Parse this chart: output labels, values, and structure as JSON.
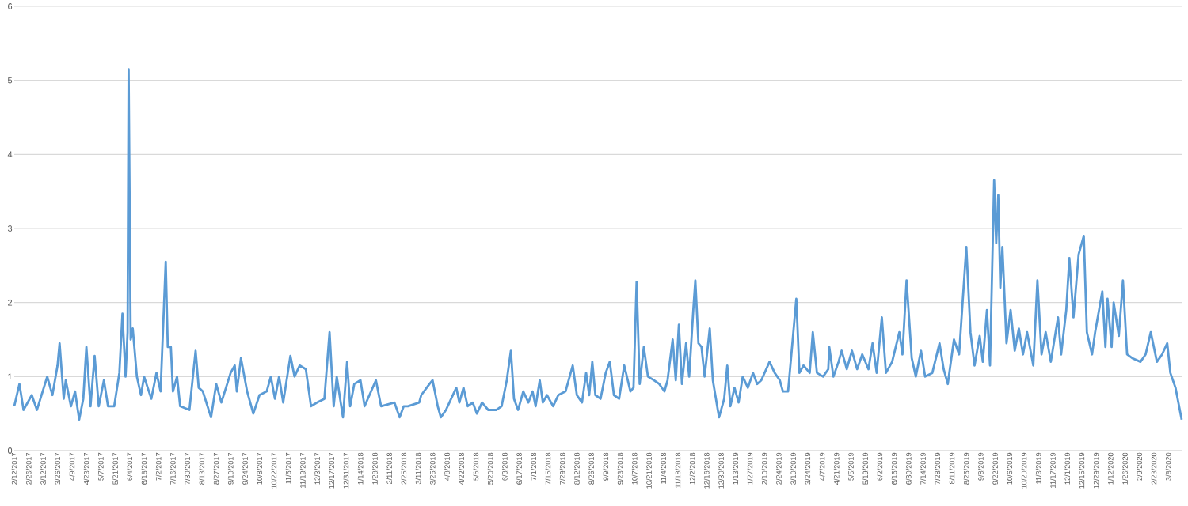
{
  "chart_data": {
    "type": "line",
    "color": "#5b9bd5",
    "grid": "y",
    "line_style": "solid",
    "xlim": [
      "2017-02-12",
      "2020-03-21"
    ],
    "ylim": [
      0,
      6
    ],
    "yticks": [
      0,
      1,
      2,
      3,
      4,
      5,
      6
    ],
    "xticks": [
      {
        "value": "2017-02-12",
        "label": "2/12/2017"
      },
      {
        "value": "2017-02-26",
        "label": "2/26/2017"
      },
      {
        "value": "2017-03-12",
        "label": "3/12/2017"
      },
      {
        "value": "2017-03-26",
        "label": "3/26/2017"
      },
      {
        "value": "2017-04-09",
        "label": "4/9/2017"
      },
      {
        "value": "2017-04-23",
        "label": "4/23/2017"
      },
      {
        "value": "2017-05-07",
        "label": "5/7/2017"
      },
      {
        "value": "2017-05-21",
        "label": "5/21/2017"
      },
      {
        "value": "2017-06-04",
        "label": "6/4/2017"
      },
      {
        "value": "2017-06-18",
        "label": "6/18/2017"
      },
      {
        "value": "2017-07-02",
        "label": "7/2/2017"
      },
      {
        "value": "2017-07-16",
        "label": "7/16/2017"
      },
      {
        "value": "2017-07-30",
        "label": "7/30/2017"
      },
      {
        "value": "2017-08-13",
        "label": "8/13/2017"
      },
      {
        "value": "2017-08-27",
        "label": "8/27/2017"
      },
      {
        "value": "2017-09-10",
        "label": "9/10/2017"
      },
      {
        "value": "2017-09-24",
        "label": "9/24/2017"
      },
      {
        "value": "2017-10-08",
        "label": "10/8/2017"
      },
      {
        "value": "2017-10-22",
        "label": "10/22/2017"
      },
      {
        "value": "2017-11-05",
        "label": "11/5/2017"
      },
      {
        "value": "2017-11-19",
        "label": "11/19/2017"
      },
      {
        "value": "2017-12-03",
        "label": "12/3/2017"
      },
      {
        "value": "2017-12-17",
        "label": "12/17/2017"
      },
      {
        "value": "2017-12-31",
        "label": "12/31/2017"
      },
      {
        "value": "2018-01-14",
        "label": "1/14/2018"
      },
      {
        "value": "2018-01-28",
        "label": "1/28/2018"
      },
      {
        "value": "2018-02-11",
        "label": "2/11/2018"
      },
      {
        "value": "2018-02-25",
        "label": "2/25/2018"
      },
      {
        "value": "2018-03-11",
        "label": "3/11/2018"
      },
      {
        "value": "2018-03-25",
        "label": "3/25/2018"
      },
      {
        "value": "2018-04-08",
        "label": "4/8/2018"
      },
      {
        "value": "2018-04-22",
        "label": "4/22/2018"
      },
      {
        "value": "2018-05-06",
        "label": "5/6/2018"
      },
      {
        "value": "2018-05-20",
        "label": "5/20/2018"
      },
      {
        "value": "2018-06-03",
        "label": "6/3/2018"
      },
      {
        "value": "2018-06-17",
        "label": "6/17/2018"
      },
      {
        "value": "2018-07-01",
        "label": "7/1/2018"
      },
      {
        "value": "2018-07-15",
        "label": "7/15/2018"
      },
      {
        "value": "2018-07-29",
        "label": "7/29/2018"
      },
      {
        "value": "2018-08-12",
        "label": "8/12/2018"
      },
      {
        "value": "2018-08-26",
        "label": "8/26/2018"
      },
      {
        "value": "2018-09-09",
        "label": "9/9/2018"
      },
      {
        "value": "2018-09-23",
        "label": "9/23/2018"
      },
      {
        "value": "2018-10-07",
        "label": "10/7/2018"
      },
      {
        "value": "2018-10-21",
        "label": "10/21/2018"
      },
      {
        "value": "2018-11-04",
        "label": "11/4/2018"
      },
      {
        "value": "2018-11-18",
        "label": "11/18/2018"
      },
      {
        "value": "2018-12-02",
        "label": "12/2/2018"
      },
      {
        "value": "2018-12-16",
        "label": "12/16/2018"
      },
      {
        "value": "2018-12-30",
        "label": "12/30/2018"
      },
      {
        "value": "2019-01-13",
        "label": "1/13/2019"
      },
      {
        "value": "2019-01-27",
        "label": "1/27/2019"
      },
      {
        "value": "2019-02-10",
        "label": "2/10/2019"
      },
      {
        "value": "2019-02-24",
        "label": "2/24/2019"
      },
      {
        "value": "2019-03-10",
        "label": "3/10/2019"
      },
      {
        "value": "2019-03-24",
        "label": "3/24/2019"
      },
      {
        "value": "2019-04-07",
        "label": "4/7/2019"
      },
      {
        "value": "2019-04-21",
        "label": "4/21/2019"
      },
      {
        "value": "2019-05-05",
        "label": "5/5/2019"
      },
      {
        "value": "2019-05-19",
        "label": "5/19/2019"
      },
      {
        "value": "2019-06-02",
        "label": "6/2/2019"
      },
      {
        "value": "2019-06-16",
        "label": "6/16/2019"
      },
      {
        "value": "2019-06-30",
        "label": "6/30/2019"
      },
      {
        "value": "2019-07-14",
        "label": "7/14/2019"
      },
      {
        "value": "2019-07-28",
        "label": "7/28/2019"
      },
      {
        "value": "2019-08-11",
        "label": "8/11/2019"
      },
      {
        "value": "2019-08-25",
        "label": "8/25/2019"
      },
      {
        "value": "2019-09-08",
        "label": "9/8/2019"
      },
      {
        "value": "2019-09-22",
        "label": "9/22/2019"
      },
      {
        "value": "2019-10-06",
        "label": "10/6/2019"
      },
      {
        "value": "2019-10-20",
        "label": "10/20/2019"
      },
      {
        "value": "2019-11-03",
        "label": "11/3/2019"
      },
      {
        "value": "2019-11-17",
        "label": "11/17/2019"
      },
      {
        "value": "2019-12-01",
        "label": "12/1/2019"
      },
      {
        "value": "2019-12-15",
        "label": "12/15/2019"
      },
      {
        "value": "2019-12-29",
        "label": "12/29/2019"
      },
      {
        "value": "2020-01-12",
        "label": "1/12/2020"
      },
      {
        "value": "2020-01-26",
        "label": "1/26/2020"
      },
      {
        "value": "2020-02-09",
        "label": "2/9/2020"
      },
      {
        "value": "2020-02-23",
        "label": "2/23/2020"
      },
      {
        "value": "2020-03-08",
        "label": "3/8/2020"
      }
    ],
    "x": [
      "2017-02-12",
      "2017-02-17",
      "2017-02-21",
      "2017-03-01",
      "2017-03-06",
      "2017-03-16",
      "2017-03-21",
      "2017-03-26",
      "2017-03-28",
      "2017-04-01",
      "2017-04-03",
      "2017-04-08",
      "2017-04-12",
      "2017-04-16",
      "2017-04-20",
      "2017-04-23",
      "2017-04-27",
      "2017-05-01",
      "2017-05-05",
      "2017-05-10",
      "2017-05-14",
      "2017-05-20",
      "2017-05-25",
      "2017-05-28",
      "2017-05-31",
      "2017-06-02",
      "2017-06-03",
      "2017-06-05",
      "2017-06-07",
      "2017-06-11",
      "2017-06-15",
      "2017-06-18",
      "2017-06-25",
      "2017-06-30",
      "2017-07-04",
      "2017-07-09",
      "2017-07-11",
      "2017-07-14",
      "2017-07-16",
      "2017-07-20",
      "2017-07-23",
      "2017-08-01",
      "2017-08-07",
      "2017-08-10",
      "2017-08-14",
      "2017-08-22",
      "2017-08-27",
      "2017-09-01",
      "2017-09-10",
      "2017-09-14",
      "2017-09-16",
      "2017-09-20",
      "2017-09-26",
      "2017-10-02",
      "2017-10-08",
      "2017-10-15",
      "2017-10-19",
      "2017-10-23",
      "2017-10-27",
      "2017-10-31",
      "2017-11-07",
      "2017-11-11",
      "2017-11-16",
      "2017-11-22",
      "2017-11-27",
      "2017-12-03",
      "2017-12-10",
      "2017-12-15",
      "2017-12-19",
      "2017-12-22",
      "2017-12-28",
      "2018-01-01",
      "2018-01-04",
      "2018-01-08",
      "2018-01-14",
      "2018-01-18",
      "2018-01-29",
      "2018-02-03",
      "2018-02-16",
      "2018-02-21",
      "2018-02-25",
      "2018-03-01",
      "2018-03-12",
      "2018-03-14",
      "2018-03-22",
      "2018-03-25",
      "2018-03-30",
      "2018-04-02",
      "2018-04-07",
      "2018-04-17",
      "2018-04-20",
      "2018-04-24",
      "2018-04-28",
      "2018-05-03",
      "2018-05-07",
      "2018-05-12",
      "2018-05-18",
      "2018-05-26",
      "2018-05-31",
      "2018-06-05",
      "2018-06-09",
      "2018-06-12",
      "2018-06-16",
      "2018-06-21",
      "2018-06-26",
      "2018-06-30",
      "2018-07-03",
      "2018-07-07",
      "2018-07-10",
      "2018-07-14",
      "2018-07-20",
      "2018-07-25",
      "2018-08-01",
      "2018-08-04",
      "2018-08-08",
      "2018-08-12",
      "2018-08-17",
      "2018-08-21",
      "2018-08-24",
      "2018-08-27",
      "2018-08-30",
      "2018-09-04",
      "2018-09-09",
      "2018-09-13",
      "2018-09-17",
      "2018-09-22",
      "2018-09-27",
      "2018-10-03",
      "2018-10-06",
      "2018-10-09",
      "2018-10-12",
      "2018-10-16",
      "2018-10-20",
      "2018-10-26",
      "2018-10-31",
      "2018-11-05",
      "2018-11-08",
      "2018-11-13",
      "2018-11-16",
      "2018-11-19",
      "2018-11-22",
      "2018-11-26",
      "2018-11-29",
      "2018-12-03",
      "2018-12-05",
      "2018-12-08",
      "2018-12-11",
      "2018-12-14",
      "2018-12-19",
      "2018-12-22",
      "2018-12-28",
      "2019-01-02",
      "2019-01-05",
      "2019-01-08",
      "2019-01-12",
      "2019-01-16",
      "2019-01-20",
      "2019-01-25",
      "2019-01-30",
      "2019-02-03",
      "2019-02-07",
      "2019-02-15",
      "2019-02-20",
      "2019-02-25",
      "2019-02-28",
      "2019-03-05",
      "2019-03-13",
      "2019-03-16",
      "2019-03-20",
      "2019-03-26",
      "2019-03-29",
      "2019-04-02",
      "2019-04-08",
      "2019-04-13",
      "2019-04-14",
      "2019-04-18",
      "2019-04-23",
      "2019-04-26",
      "2019-05-01",
      "2019-05-06",
      "2019-05-11",
      "2019-05-16",
      "2019-05-22",
      "2019-05-26",
      "2019-05-30",
      "2019-06-04",
      "2019-06-08",
      "2019-06-14",
      "2019-06-21",
      "2019-06-24",
      "2019-06-28",
      "2019-07-03",
      "2019-07-07",
      "2019-07-12",
      "2019-07-16",
      "2019-07-23",
      "2019-07-30",
      "2019-08-03",
      "2019-08-07",
      "2019-08-13",
      "2019-08-18",
      "2019-08-25",
      "2019-08-29",
      "2019-09-02",
      "2019-09-07",
      "2019-09-10",
      "2019-09-14",
      "2019-09-17",
      "2019-09-21",
      "2019-09-23",
      "2019-09-25",
      "2019-09-27",
      "2019-09-29",
      "2019-10-03",
      "2019-10-07",
      "2019-10-11",
      "2019-10-15",
      "2019-10-19",
      "2019-10-23",
      "2019-10-29",
      "2019-11-02",
      "2019-11-06",
      "2019-11-10",
      "2019-11-15",
      "2019-11-22",
      "2019-11-25",
      "2019-11-30",
      "2019-12-03",
      "2019-12-07",
      "2019-12-12",
      "2019-12-17",
      "2019-12-20",
      "2019-12-25",
      "2019-12-28",
      "2020-01-04",
      "2020-01-07",
      "2020-01-09",
      "2020-01-13",
      "2020-01-15",
      "2020-01-20",
      "2020-01-24",
      "2020-01-28",
      "2020-02-02",
      "2020-02-10",
      "2020-02-15",
      "2020-02-20",
      "2020-02-26",
      "2020-03-02",
      "2020-03-07",
      "2020-03-10",
      "2020-03-15",
      "2020-03-21"
    ],
    "values": [
      0.6,
      0.9,
      0.55,
      0.75,
      0.55,
      1.0,
      0.75,
      1.15,
      1.45,
      0.7,
      0.95,
      0.6,
      0.8,
      0.42,
      0.7,
      1.4,
      0.6,
      1.28,
      0.6,
      0.95,
      0.6,
      0.6,
      1.05,
      1.85,
      1.0,
      1.6,
      5.15,
      1.5,
      1.65,
      1.0,
      0.75,
      1.0,
      0.7,
      1.05,
      0.8,
      2.55,
      1.4,
      1.4,
      0.8,
      1.0,
      0.6,
      0.55,
      1.35,
      0.85,
      0.8,
      0.45,
      0.9,
      0.65,
      1.05,
      1.15,
      0.8,
      1.25,
      0.8,
      0.5,
      0.75,
      0.8,
      1.0,
      0.7,
      1.0,
      0.65,
      1.28,
      1.0,
      1.15,
      1.1,
      0.6,
      0.65,
      0.7,
      1.6,
      0.6,
      1.0,
      0.45,
      1.2,
      0.6,
      0.9,
      0.95,
      0.6,
      0.95,
      0.6,
      0.65,
      0.45,
      0.6,
      0.6,
      0.65,
      0.75,
      0.9,
      0.95,
      0.6,
      0.45,
      0.55,
      0.85,
      0.65,
      0.85,
      0.6,
      0.65,
      0.5,
      0.65,
      0.55,
      0.55,
      0.6,
      0.95,
      1.35,
      0.7,
      0.55,
      0.8,
      0.65,
      0.8,
      0.6,
      0.95,
      0.65,
      0.75,
      0.6,
      0.75,
      0.8,
      0.95,
      1.15,
      0.75,
      0.65,
      1.05,
      0.75,
      1.2,
      0.75,
      0.7,
      1.05,
      1.2,
      0.75,
      0.7,
      1.15,
      0.8,
      0.85,
      2.28,
      0.9,
      1.4,
      1.0,
      0.95,
      0.9,
      0.8,
      0.95,
      1.5,
      0.95,
      1.7,
      0.9,
      1.45,
      1.0,
      1.9,
      2.3,
      1.45,
      1.4,
      1.0,
      1.65,
      0.95,
      0.45,
      0.7,
      1.15,
      0.6,
      0.85,
      0.65,
      1.0,
      0.85,
      1.05,
      0.9,
      0.95,
      1.2,
      1.05,
      0.95,
      0.8,
      0.8,
      2.05,
      1.05,
      1.15,
      1.05,
      1.6,
      1.05,
      1.0,
      1.1,
      1.4,
      1.0,
      1.2,
      1.35,
      1.1,
      1.35,
      1.1,
      1.3,
      1.1,
      1.45,
      1.05,
      1.8,
      1.05,
      1.2,
      1.6,
      1.3,
      2.3,
      1.25,
      1.0,
      1.35,
      1.0,
      1.05,
      1.45,
      1.1,
      0.9,
      1.5,
      1.3,
      2.75,
      1.6,
      1.15,
      1.55,
      1.2,
      1.9,
      1.15,
      3.65,
      2.8,
      3.45,
      2.2,
      2.75,
      1.45,
      1.9,
      1.35,
      1.65,
      1.3,
      1.6,
      1.15,
      2.3,
      1.3,
      1.6,
      1.2,
      1.8,
      1.3,
      1.9,
      2.6,
      1.8,
      2.65,
      2.9,
      1.6,
      1.3,
      1.6,
      2.15,
      1.4,
      2.05,
      1.4,
      2.0,
      1.55,
      2.3,
      1.3,
      1.25,
      1.2,
      1.3,
      1.6,
      1.2,
      1.3,
      1.45,
      1.05,
      0.85,
      0.42
    ]
  }
}
